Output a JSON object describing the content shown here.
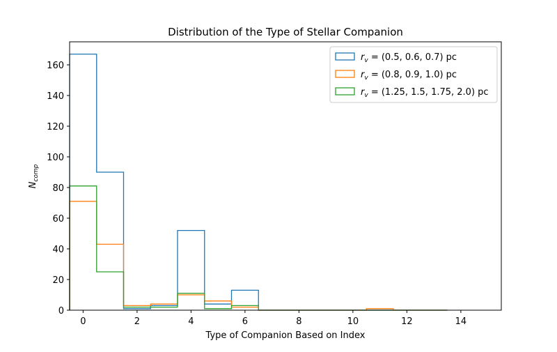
{
  "chart_data": {
    "type": "histogram",
    "title": "Distribution of the Type of Stellar Companion",
    "xlabel": "Type of Companion Based on Index",
    "ylabel_base": "N",
    "ylabel_sub": "comp",
    "xlim": [
      -0.5,
      15.5
    ],
    "ylim": [
      0,
      175
    ],
    "xticks": [
      0,
      2,
      4,
      6,
      8,
      10,
      12,
      14
    ],
    "yticks": [
      0,
      20,
      40,
      60,
      80,
      100,
      120,
      140,
      160
    ],
    "bin_edges": [
      -0.5,
      0.5,
      1.5,
      2.5,
      3.5,
      4.5,
      5.5,
      6.5,
      7.5,
      8.5,
      9.5,
      10.5,
      11.5,
      12.5,
      13.5,
      14.5
    ],
    "grid": false,
    "legend_position": "top-right",
    "series": [
      {
        "name": "r_v = (0.5, 0.6, 0.7) pc",
        "legend_main": "r",
        "legend_sub": "v",
        "legend_rest": " = (0.5, 0.6, 0.7) pc",
        "color": "#1f77b4",
        "values": [
          167,
          90,
          1,
          3,
          52,
          4,
          13,
          0,
          0,
          0,
          0,
          0,
          0,
          0
        ]
      },
      {
        "name": "r_v = (0.8, 0.9, 1.0) pc",
        "legend_main": "r",
        "legend_sub": "v",
        "legend_rest": " = (0.8, 0.9, 1.0) pc",
        "color": "#ff7f0e",
        "values": [
          71,
          43,
          3,
          4,
          10,
          6,
          2,
          0,
          0,
          0,
          0,
          1,
          0,
          0
        ]
      },
      {
        "name": "r_v = (1.25, 1.5, 1.75, 2.0) pc",
        "legend_main": "r",
        "legend_sub": "v",
        "legend_rest": " = (1.25, 1.5, 1.75, 2.0) pc",
        "color": "#2ca02c",
        "values": [
          81,
          25,
          2,
          2,
          11,
          1,
          3,
          0,
          0,
          0,
          0,
          0,
          0,
          0
        ]
      }
    ]
  }
}
